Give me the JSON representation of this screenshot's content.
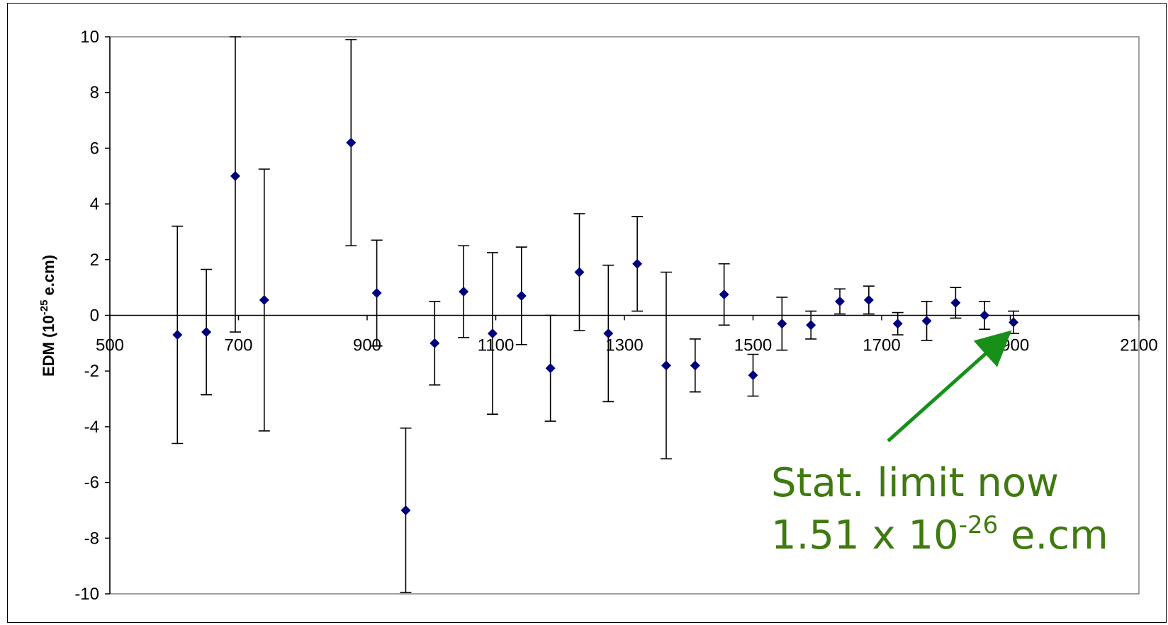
{
  "chart_data": {
    "type": "scatter",
    "title": "",
    "xlabel": "",
    "ylabel": "EDM (10",
    "ylabel_sup": "-25",
    "ylabel_tail": " e.cm)",
    "xlim": [
      500,
      2100
    ],
    "ylim": [
      -10,
      10
    ],
    "x_ticks": [
      500,
      700,
      900,
      1100,
      1300,
      1500,
      1700,
      1900,
      2100
    ],
    "y_ticks": [
      10,
      8,
      6,
      4,
      2,
      0,
      -2,
      -4,
      -6,
      -8,
      -10
    ],
    "grid": false,
    "legend": "none",
    "marker_color": "#00007f",
    "error_bar_color": "#000000",
    "points": [
      {
        "x": 605,
        "y": -0.7,
        "err": 3.9
      },
      {
        "x": 650,
        "y": -0.6,
        "err": 2.25
      },
      {
        "x": 695,
        "y": 5.0,
        "err": 5.6
      },
      {
        "x": 740,
        "y": 0.55,
        "err": 4.7
      },
      {
        "x": 875,
        "y": 6.2,
        "err": 3.7
      },
      {
        "x": 915,
        "y": 0.8,
        "err": 1.9
      },
      {
        "x": 960,
        "y": -7.0,
        "err": 2.95
      },
      {
        "x": 1005,
        "y": -1.0,
        "err": 1.5
      },
      {
        "x": 1050,
        "y": 0.85,
        "err": 1.65
      },
      {
        "x": 1095,
        "y": -0.65,
        "err": 2.9
      },
      {
        "x": 1140,
        "y": 0.7,
        "err": 1.75
      },
      {
        "x": 1185,
        "y": -1.9,
        "err": 1.9
      },
      {
        "x": 1230,
        "y": 1.55,
        "err": 2.1
      },
      {
        "x": 1275,
        "y": -0.65,
        "err": 2.45
      },
      {
        "x": 1320,
        "y": 1.85,
        "err": 1.7
      },
      {
        "x": 1365,
        "y": -1.8,
        "err": 3.35
      },
      {
        "x": 1410,
        "y": -1.8,
        "err": 0.95
      },
      {
        "x": 1455,
        "y": 0.75,
        "err": 1.1
      },
      {
        "x": 1500,
        "y": -2.15,
        "err": 0.75
      },
      {
        "x": 1545,
        "y": -0.3,
        "err": 0.95
      },
      {
        "x": 1590,
        "y": -0.35,
        "err": 0.5
      },
      {
        "x": 1635,
        "y": 0.5,
        "err": 0.45
      },
      {
        "x": 1680,
        "y": 0.55,
        "err": 0.5
      },
      {
        "x": 1725,
        "y": -0.3,
        "err": 0.4
      },
      {
        "x": 1770,
        "y": -0.2,
        "err": 0.7
      },
      {
        "x": 1815,
        "y": 0.45,
        "err": 0.55
      },
      {
        "x": 1860,
        "y": 0.0,
        "err": 0.5
      },
      {
        "x": 1905,
        "y": -0.25,
        "err": 0.4
      }
    ],
    "annotation": {
      "line1": "Stat. limit now",
      "line2_pre": "1.51 x 10",
      "line2_sup": "-26",
      "line2_post": " e.cm",
      "color": "#3f7a10",
      "arrow_color": "#17901a",
      "arrow_target": {
        "x": 1905,
        "y": -0.25
      }
    }
  }
}
